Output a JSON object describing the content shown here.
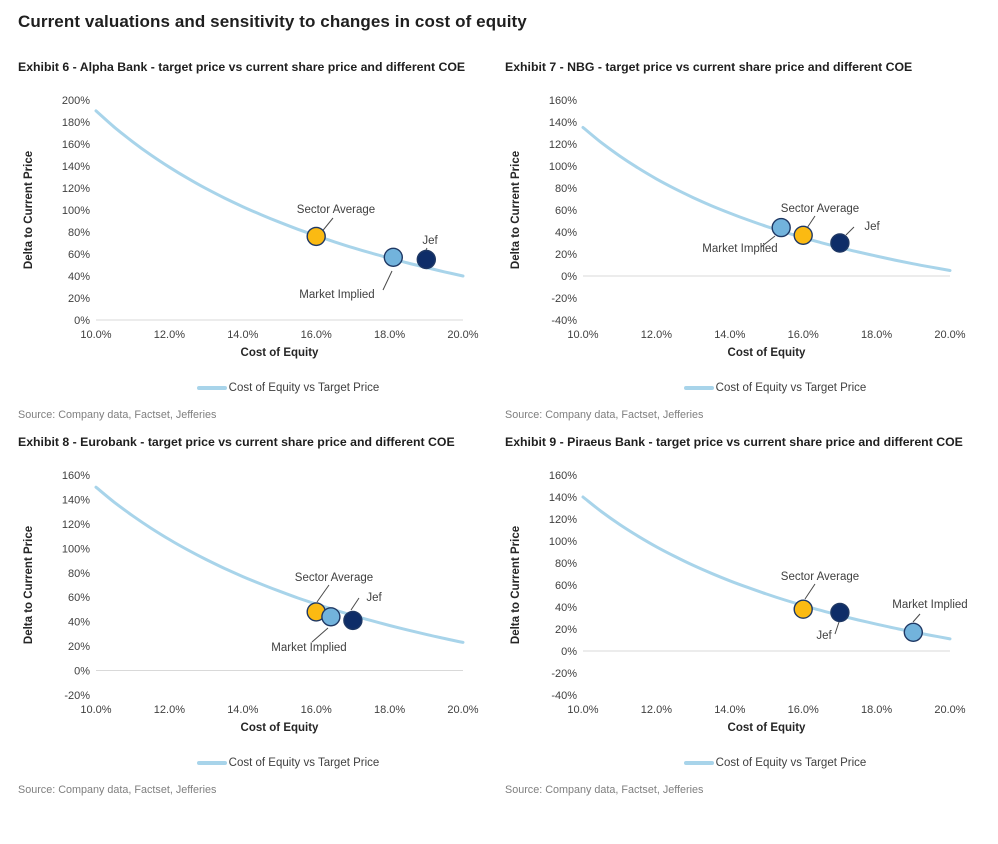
{
  "page": {
    "title": "Current valuations and sensitivity to changes in cost of equity"
  },
  "shared": {
    "legend_label": "Cost of Equity vs Target Price",
    "source": "Source: Company data, Factset, Jefferies",
    "colors": {
      "curve": "#A8D4EA",
      "sector_average": "#FBBA12",
      "market_implied": "#72B3DC",
      "jef": "#0E2D68",
      "marker_stroke": "#1F3864",
      "zero_line": "#D9D9D9",
      "connector": "#4a4a4a"
    }
  },
  "chart_data": [
    {
      "type": "line+scatter",
      "title": "Exhibit 6 - Alpha Bank - target price vs current share price and different COE",
      "x_axis": {
        "title": "Cost of Equity",
        "min": 10,
        "max": 20,
        "tick_values": [
          10,
          12,
          14,
          16,
          18,
          20
        ],
        "tick_labels": [
          "10.0%",
          "12.0%",
          "14.0%",
          "16.0%",
          "18.0%",
          "20.0%"
        ]
      },
      "y_axis": {
        "title": "Delta to Current Price",
        "min": 0,
        "max": 200,
        "tick_values": [
          200,
          180,
          160,
          140,
          120,
          100,
          80,
          60,
          40,
          20,
          0
        ],
        "tick_labels": [
          "200%",
          "180%",
          "160%",
          "140%",
          "120%",
          "100%",
          "80%",
          "60%",
          "40%",
          "20%",
          "0%"
        ]
      },
      "curve": {
        "name": "Cost of Equity vs Target Price",
        "x": [
          10,
          10.5,
          11,
          11.5,
          12,
          12.5,
          13,
          13.5,
          14,
          14.5,
          15,
          15.5,
          16,
          16.5,
          17,
          17.5,
          18,
          18.5,
          19,
          19.5,
          20
        ],
        "y": [
          190.1,
          175.3,
          162.0,
          149.9,
          138.9,
          128.8,
          119.5,
          110.9,
          103.0,
          95.7,
          88.9,
          82.5,
          76.6,
          71.0,
          65.7,
          60.8,
          56.2,
          51.8,
          47.7,
          43.7,
          40.0
        ]
      },
      "markers": [
        {
          "id": "sector-average",
          "label": "Sector Average",
          "x": 16.0,
          "y": 76,
          "label_x": 318,
          "label_y": 125,
          "anchor": "middle",
          "connector": [
            315,
            130,
            302,
            146
          ]
        },
        {
          "id": "market-implied",
          "label": "Market Implied",
          "x": 18.1,
          "y": 57,
          "label_x": 319,
          "label_y": 210,
          "anchor": "middle",
          "connector": [
            365,
            202,
            374,
            183
          ]
        },
        {
          "id": "jef",
          "label": "Jef",
          "x": 19.0,
          "y": 55,
          "label_x": 412,
          "label_y": 156,
          "anchor": "middle",
          "connector": [
            409,
            160,
            406,
            166
          ]
        }
      ]
    },
    {
      "type": "line+scatter",
      "title": "Exhibit 7 - NBG - target price vs current share price and different COE",
      "x_axis": {
        "title": "Cost of Equity",
        "min": 10,
        "max": 20,
        "tick_values": [
          10,
          12,
          14,
          16,
          18,
          20
        ],
        "tick_labels": [
          "10.0%",
          "12.0%",
          "14.0%",
          "16.0%",
          "18.0%",
          "20.0%"
        ]
      },
      "y_axis": {
        "title": "Delta to Current Price",
        "min": -40,
        "max": 160,
        "tick_values": [
          160,
          140,
          120,
          100,
          80,
          60,
          40,
          20,
          0,
          -20,
          -40
        ],
        "tick_labels": [
          "160%",
          "140%",
          "120%",
          "100%",
          "80%",
          "60%",
          "40%",
          "20%",
          "0%",
          "-20%",
          "-40%"
        ]
      },
      "curve": {
        "name": "Cost of Equity vs Target Price",
        "x": [
          10,
          10.5,
          11,
          11.5,
          12,
          12.5,
          13,
          13.5,
          14,
          14.5,
          15,
          15.5,
          16,
          16.5,
          17,
          17.5,
          18,
          18.5,
          19,
          19.5,
          20
        ],
        "y": [
          135.0,
          121.3,
          109.1,
          98.2,
          88.3,
          79.4,
          71.3,
          63.9,
          57.2,
          50.9,
          45.1,
          39.8,
          34.8,
          30.2,
          25.9,
          21.8,
          18.1,
          14.5,
          11.1,
          8.0,
          5.0
        ]
      },
      "markers": [
        {
          "id": "market-implied",
          "label": "Market Implied",
          "x": 15.4,
          "y": 44,
          "label_x": 235,
          "label_y": 164,
          "anchor": "middle",
          "connector": [
            256,
            159,
            270,
            148
          ]
        },
        {
          "id": "sector-average",
          "label": "Sector Average",
          "x": 16.0,
          "y": 37,
          "label_x": 315,
          "label_y": 124,
          "anchor": "middle",
          "connector": [
            310,
            128,
            302,
            140
          ]
        },
        {
          "id": "jef",
          "label": "Jef",
          "x": 17.0,
          "y": 30,
          "label_x": 367,
          "label_y": 142,
          "anchor": "middle",
          "connector": [
            349,
            139,
            341,
            147
          ]
        }
      ]
    },
    {
      "type": "line+scatter",
      "title": "Exhibit 8 - Eurobank - target price vs current share price and different COE",
      "x_axis": {
        "title": "Cost of Equity",
        "min": 10,
        "max": 20,
        "tick_values": [
          10,
          12,
          14,
          16,
          18,
          20
        ],
        "tick_labels": [
          "10.0%",
          "12.0%",
          "14.0%",
          "16.0%",
          "18.0%",
          "20.0%"
        ]
      },
      "y_axis": {
        "title": "Delta to Current Price",
        "min": -20,
        "max": 160,
        "tick_values": [
          160,
          140,
          120,
          100,
          80,
          60,
          40,
          20,
          0,
          -20
        ],
        "tick_labels": [
          "160%",
          "140%",
          "120%",
          "100%",
          "80%",
          "60%",
          "40%",
          "20%",
          "0%",
          "-20%"
        ]
      },
      "curve": {
        "name": "Cost of Equity vs Target Price",
        "x": [
          10,
          10.5,
          11,
          11.5,
          12,
          12.5,
          13,
          13.5,
          14,
          14.5,
          15,
          15.5,
          16,
          16.5,
          17,
          17.5,
          18,
          18.5,
          19,
          19.5,
          20
        ],
        "y": [
          150.0,
          137.7,
          126.6,
          116.5,
          107.2,
          98.7,
          90.9,
          83.6,
          76.9,
          70.7,
          64.9,
          59.4,
          54.4,
          49.6,
          45.1,
          40.9,
          36.9,
          33.1,
          29.6,
          26.2,
          23.0
        ]
      },
      "markers": [
        {
          "id": "sector-average",
          "label": "Sector Average",
          "x": 16.0,
          "y": 48,
          "label_x": 316,
          "label_y": 118,
          "anchor": "middle",
          "connector": [
            311,
            122,
            299,
            139
          ]
        },
        {
          "id": "market-implied",
          "label": "Market Implied",
          "x": 16.4,
          "y": 44,
          "label_x": 291,
          "label_y": 188,
          "anchor": "middle",
          "connector": [
            294,
            179,
            310,
            165
          ]
        },
        {
          "id": "jef",
          "label": "Jef",
          "x": 17.0,
          "y": 41,
          "label_x": 356,
          "label_y": 138,
          "anchor": "middle",
          "connector": [
            341,
            135,
            333,
            147
          ]
        }
      ]
    },
    {
      "type": "line+scatter",
      "title": "Exhibit 9 - Piraeus Bank - target price vs current share price and different COE",
      "x_axis": {
        "title": "Cost of Equity",
        "min": 10,
        "max": 20,
        "tick_values": [
          10,
          12,
          14,
          16,
          18,
          20
        ],
        "tick_labels": [
          "10.0%",
          "12.0%",
          "14.0%",
          "16.0%",
          "18.0%",
          "20.0%"
        ]
      },
      "y_axis": {
        "title": "Delta to Current Price",
        "min": -40,
        "max": 160,
        "tick_values": [
          160,
          140,
          120,
          100,
          80,
          60,
          40,
          20,
          0,
          -20,
          -40
        ],
        "tick_labels": [
          "160%",
          "140%",
          "120%",
          "100%",
          "80%",
          "60%",
          "40%",
          "20%",
          "0%",
          "-20%",
          "-40%"
        ]
      },
      "curve": {
        "name": "Cost of Equity vs Target Price",
        "x": [
          10,
          10.5,
          11,
          11.5,
          12,
          12.5,
          13,
          13.5,
          14,
          14.5,
          15,
          15.5,
          16,
          16.5,
          17,
          17.5,
          18,
          18.5,
          19,
          19.5,
          20
        ],
        "y": [
          140.0,
          126.8,
          115.0,
          104.4,
          94.7,
          86.0,
          77.9,
          70.6,
          63.8,
          57.6,
          51.8,
          46.4,
          41.4,
          36.7,
          32.3,
          28.2,
          24.4,
          20.7,
          17.3,
          14.1,
          11.0
        ]
      },
      "markers": [
        {
          "id": "sector-average",
          "label": "Sector Average",
          "x": 16.0,
          "y": 38,
          "label_x": 315,
          "label_y": 117,
          "anchor": "middle",
          "connector": [
            310,
            121,
            300,
            136
          ]
        },
        {
          "id": "jef",
          "label": "Jef",
          "x": 17.0,
          "y": 35,
          "label_x": 319,
          "label_y": 176,
          "anchor": "middle",
          "connector": [
            330,
            171,
            334,
            159
          ]
        },
        {
          "id": "market-implied",
          "label": "Market Implied",
          "x": 19.0,
          "y": 17,
          "label_x": 425,
          "label_y": 145,
          "anchor": "middle",
          "connector": [
            415,
            151,
            408,
            159
          ]
        }
      ]
    }
  ]
}
